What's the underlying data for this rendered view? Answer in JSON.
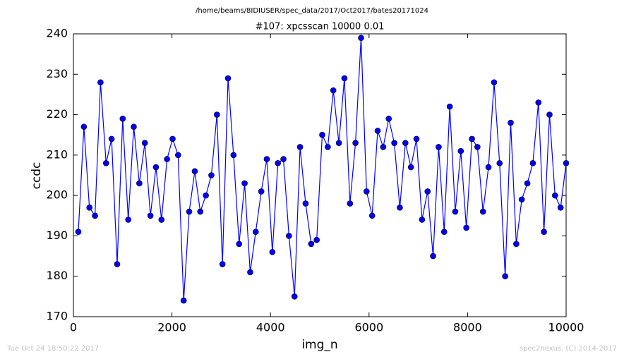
{
  "chart_data": {
    "type": "line",
    "suptitle": "/home/beams/8IDIUSER/spec_data/2017/Oct2017/bates20171024",
    "title": "#107: xpcsscan 10000 0.01",
    "xlabel": "img_n",
    "ylabel": "ccdc",
    "footer_left": "Tue Oct 24 18:50:22 2017",
    "footer_right": "spec2nexus, (C) 2014-2017",
    "x": [
      100,
      213,
      325,
      438,
      550,
      663,
      775,
      888,
      1000,
      1113,
      1225,
      1338,
      1450,
      1563,
      1675,
      1788,
      1900,
      2013,
      2125,
      2238,
      2350,
      2463,
      2575,
      2688,
      2800,
      2913,
      3025,
      3138,
      3250,
      3363,
      3475,
      3588,
      3700,
      3813,
      3925,
      4038,
      4150,
      4263,
      4375,
      4488,
      4600,
      4713,
      4825,
      4938,
      5050,
      5163,
      5275,
      5388,
      5500,
      5613,
      5725,
      5838,
      5950,
      6063,
      6175,
      6288,
      6400,
      6513,
      6625,
      6738,
      6850,
      6963,
      7075,
      7188,
      7300,
      7413,
      7525,
      7638,
      7750,
      7863,
      7975,
      8088,
      8200,
      8313,
      8425,
      8538,
      8650,
      8763,
      8875,
      8988,
      9100,
      9213,
      9325,
      9438,
      9550,
      9663,
      9775,
      9888,
      10000
    ],
    "series": [
      {
        "name": "ccdc",
        "color": "#0000ff",
        "values": [
          191,
          217,
          197,
          195,
          228,
          208,
          214,
          183,
          219,
          194,
          217,
          203,
          213,
          195,
          207,
          194,
          209,
          214,
          210,
          174,
          196,
          206,
          196,
          200,
          205,
          220,
          183,
          229,
          210,
          188,
          203,
          181,
          191,
          201,
          209,
          186,
          208,
          209,
          190,
          175,
          212,
          198,
          188,
          189,
          215,
          212,
          226,
          213,
          229,
          198,
          213,
          239,
          201,
          195,
          216,
          212,
          219,
          213,
          197,
          213,
          207,
          214,
          194,
          201,
          185,
          212,
          191,
          222,
          196,
          211,
          192,
          214,
          212,
          196,
          207,
          228,
          208,
          180,
          218,
          188,
          199,
          203,
          208,
          223,
          191,
          220,
          200,
          197,
          208
        ]
      }
    ],
    "xlim": [
      0,
      10000
    ],
    "xticks": [
      0,
      2000,
      4000,
      6000,
      8000,
      10000
    ],
    "ylim": [
      170,
      240
    ],
    "yticks": [
      170,
      180,
      190,
      200,
      210,
      220,
      230,
      240
    ],
    "grid": false
  }
}
